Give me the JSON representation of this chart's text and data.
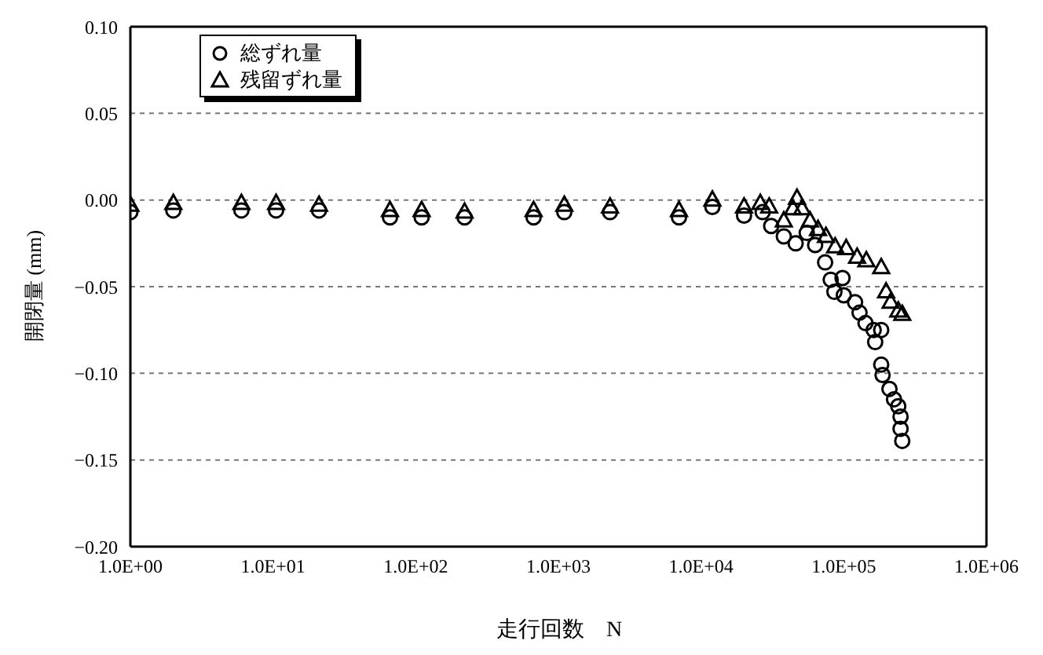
{
  "chart_data": {
    "type": "scatter",
    "xlabel": "走行回数　N",
    "ylabel": "開閉量 (mm)",
    "log": "x",
    "grid": "y",
    "legend": "top left",
    "xlim": [
      1,
      1000000
    ],
    "xticks": [
      {
        "value": 1,
        "label": "1.0E+00"
      },
      {
        "value": 10,
        "label": "1.0E+01"
      },
      {
        "value": 100,
        "label": "1.0E+02"
      },
      {
        "value": 1000,
        "label": "1.0E+03"
      },
      {
        "value": 10000,
        "label": "1.0E+04"
      },
      {
        "value": 100000,
        "label": "1.0E+05"
      },
      {
        "value": 1000000,
        "label": "1.0E+06"
      }
    ],
    "ylim": [
      -0.2,
      0.1
    ],
    "yticks": [
      {
        "value": -0.2,
        "label": "−0.20"
      },
      {
        "value": -0.15,
        "label": "−0.15"
      },
      {
        "value": -0.1,
        "label": "−0.10"
      },
      {
        "value": -0.05,
        "label": "−0.05"
      },
      {
        "value": 0,
        "label": "0.00"
      },
      {
        "value": 0.05,
        "label": "0.05"
      },
      {
        "value": 0.1,
        "label": "0.10"
      }
    ],
    "series": [
      {
        "name": "総ずれ量",
        "color": "#000000",
        "marker": "circle",
        "x": [
          1,
          2,
          6,
          10.5,
          21,
          66,
          110,
          220,
          670,
          1100,
          2300,
          7000,
          12000,
          20000,
          27000,
          31000,
          38000,
          46000,
          55000,
          63000,
          74000,
          81000,
          98000,
          86000,
          100000,
          120000,
          129000,
          142000,
          162000,
          183000,
          166000,
          183000,
          187000,
          209000,
          225000,
          241000,
          250000,
          250000,
          257000
        ],
        "values": [
          -0.007,
          -0.006,
          -0.006,
          -0.006,
          -0.006,
          -0.01,
          -0.01,
          -0.01,
          -0.01,
          -0.007,
          -0.007,
          -0.01,
          -0.004,
          -0.009,
          -0.007,
          -0.015,
          -0.021,
          -0.025,
          -0.019,
          -0.026,
          -0.036,
          -0.046,
          -0.045,
          -0.053,
          -0.055,
          -0.059,
          -0.065,
          -0.071,
          -0.075,
          -0.075,
          -0.082,
          -0.095,
          -0.101,
          -0.109,
          -0.115,
          -0.119,
          -0.125,
          -0.132,
          -0.139
        ]
      },
      {
        "name": "残留ずれ量",
        "color": "#000000",
        "marker": "triangle",
        "x": [
          1,
          2,
          6,
          10.5,
          21,
          66,
          110,
          220,
          670,
          1100,
          2300,
          7000,
          12000,
          20000,
          26000,
          30000,
          38000,
          44000,
          47000,
          51000,
          58000,
          66000,
          75000,
          87000,
          104000,
          124000,
          144000,
          183000,
          198000,
          213000,
          241000,
          257000
        ],
        "values": [
          -0.003,
          -0.002,
          -0.002,
          -0.002,
          -0.003,
          -0.006,
          -0.006,
          -0.007,
          -0.006,
          -0.003,
          -0.004,
          -0.006,
          0.0,
          -0.004,
          -0.002,
          -0.004,
          -0.012,
          -0.005,
          0.001,
          -0.005,
          -0.012,
          -0.017,
          -0.021,
          -0.027,
          -0.028,
          -0.033,
          -0.035,
          -0.039,
          -0.053,
          -0.059,
          -0.064,
          -0.066
        ]
      }
    ]
  }
}
